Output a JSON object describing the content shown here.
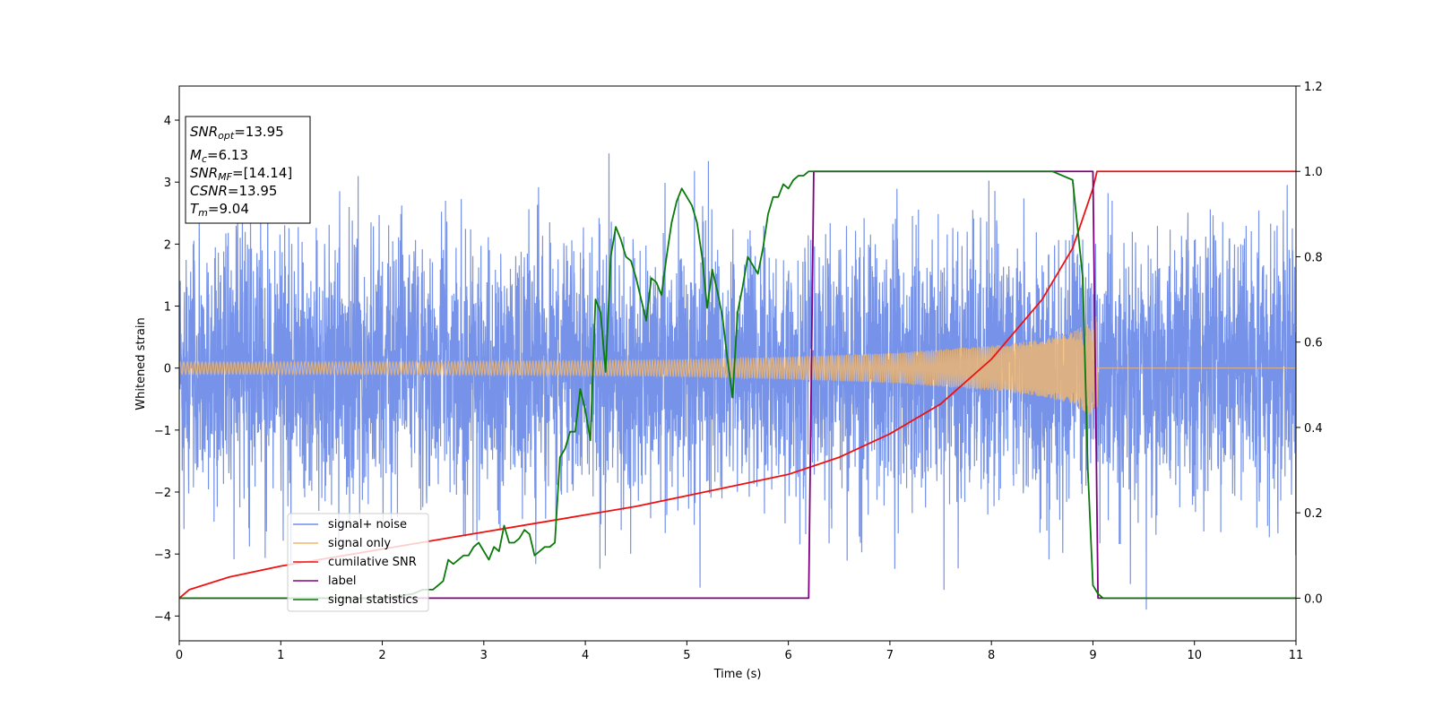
{
  "chart_data": {
    "type": "line",
    "xlabel": "Time (s)",
    "ylabel": "Whitened strain",
    "xlim": [
      0,
      11
    ],
    "ylim": [
      -4.4,
      4.55
    ],
    "y2lim": [
      -0.1,
      1.2
    ],
    "x_ticks": [
      "0",
      "1",
      "2",
      "3",
      "4",
      "5",
      "6",
      "7",
      "8",
      "9",
      "10",
      "11"
    ],
    "y_ticks": [
      "−4",
      "−3",
      "−2",
      "−1",
      "0",
      "1",
      "2",
      "3",
      "4"
    ],
    "y2_ticks": [
      "0.0",
      "0.2",
      "0.4",
      "0.6",
      "0.8",
      "1.0",
      "1.2"
    ],
    "grid": false,
    "legend_position": "lower-left",
    "info_box": {
      "lines": [
        {
          "main": "SNR",
          "sub": "opt",
          "value": "=13.95"
        },
        {
          "main": "M",
          "sub": "c",
          "value": "=6.13"
        },
        {
          "main": "SNR",
          "sub": "MF",
          "value": "=[14.14]"
        },
        {
          "main": "CSNR",
          "sub": "",
          "value": "=13.95"
        },
        {
          "main": "T",
          "sub": "m",
          "value": "=9.04"
        }
      ]
    },
    "series": [
      {
        "name": "signal+ noise",
        "axis": "left",
        "color": "#4169e1",
        "kind": "noise",
        "x_range": [
          0,
          11
        ],
        "noise_sigma": 1.05,
        "peak_max": 4.17,
        "trough_min": -3.9
      },
      {
        "name": "signal only",
        "axis": "left",
        "color": "#f4b86a",
        "kind": "chirp",
        "x_range": [
          0,
          9.04
        ],
        "envelope": {
          "x": [
            0,
            2,
            4,
            5,
            6,
            7,
            8,
            8.5,
            8.8,
            9.0,
            9.04
          ],
          "y": [
            0.1,
            0.1,
            0.12,
            0.14,
            0.18,
            0.24,
            0.36,
            0.46,
            0.58,
            0.78,
            0.85
          ]
        },
        "after_merger": 0
      },
      {
        "name": "cumilative SNR",
        "axis": "right",
        "color": "#ee1111",
        "x": [
          0,
          0.1,
          0.5,
          1,
          1.5,
          2,
          2.5,
          3,
          3.5,
          4,
          4.5,
          5,
          5.5,
          6,
          6.5,
          7,
          7.5,
          8,
          8.5,
          8.8,
          9.0,
          9.04,
          11
        ],
        "y": [
          0.0,
          0.02,
          0.05,
          0.075,
          0.095,
          0.115,
          0.135,
          0.155,
          0.175,
          0.195,
          0.215,
          0.24,
          0.265,
          0.29,
          0.33,
          0.385,
          0.455,
          0.56,
          0.7,
          0.82,
          0.96,
          1.0,
          1.0
        ]
      },
      {
        "name": "label",
        "axis": "right",
        "color": "#800080",
        "x": [
          0,
          6.2,
          6.25,
          9.0,
          9.05,
          11
        ],
        "y": [
          0,
          0,
          1,
          1,
          0,
          0
        ]
      },
      {
        "name": "signal statistics",
        "axis": "right",
        "color": "#0a7a0a",
        "x": [
          0,
          2.0,
          2.3,
          2.4,
          2.5,
          2.6,
          2.65,
          2.7,
          2.75,
          2.8,
          2.85,
          2.9,
          2.95,
          3.0,
          3.05,
          3.1,
          3.15,
          3.2,
          3.25,
          3.3,
          3.35,
          3.4,
          3.45,
          3.5,
          3.55,
          3.6,
          3.65,
          3.7,
          3.75,
          3.8,
          3.85,
          3.9,
          3.95,
          4.0,
          4.05,
          4.1,
          4.15,
          4.2,
          4.25,
          4.3,
          4.35,
          4.4,
          4.45,
          4.5,
          4.55,
          4.6,
          4.65,
          4.7,
          4.75,
          4.8,
          4.85,
          4.9,
          4.95,
          5.0,
          5.05,
          5.1,
          5.15,
          5.2,
          5.25,
          5.3,
          5.35,
          5.4,
          5.45,
          5.5,
          5.55,
          5.6,
          5.65,
          5.7,
          5.75,
          5.8,
          5.85,
          5.9,
          5.95,
          6.0,
          6.05,
          6.1,
          6.15,
          6.2,
          6.25,
          6.3,
          6.35,
          6.4,
          6.45,
          6.5,
          6.55,
          6.6,
          6.7,
          6.8,
          6.9,
          7.0,
          7.2,
          7.4,
          7.6,
          7.8,
          8.0,
          8.2,
          8.4,
          8.6,
          8.8,
          8.9,
          8.95,
          9.0,
          9.05,
          9.1,
          9.2,
          11
        ],
        "y": [
          0.0,
          0.0,
          0.01,
          0.02,
          0.02,
          0.04,
          0.09,
          0.08,
          0.09,
          0.1,
          0.1,
          0.12,
          0.13,
          0.11,
          0.09,
          0.12,
          0.11,
          0.17,
          0.13,
          0.13,
          0.14,
          0.16,
          0.15,
          0.1,
          0.11,
          0.12,
          0.12,
          0.13,
          0.33,
          0.35,
          0.39,
          0.39,
          0.49,
          0.44,
          0.37,
          0.7,
          0.67,
          0.53,
          0.8,
          0.87,
          0.84,
          0.8,
          0.79,
          0.75,
          0.7,
          0.65,
          0.75,
          0.74,
          0.71,
          0.8,
          0.88,
          0.93,
          0.96,
          0.94,
          0.92,
          0.88,
          0.8,
          0.68,
          0.77,
          0.72,
          0.66,
          0.56,
          0.47,
          0.67,
          0.73,
          0.8,
          0.78,
          0.76,
          0.82,
          0.9,
          0.94,
          0.94,
          0.97,
          0.96,
          0.98,
          0.99,
          0.99,
          1.0,
          1.0,
          1.0,
          1.0,
          1.0,
          1.0,
          1.0,
          1.0,
          1.0,
          1.0,
          1.0,
          1.0,
          1.0,
          1.0,
          1.0,
          1.0,
          1.0,
          1.0,
          1.0,
          1.0,
          1.0,
          0.98,
          0.75,
          0.3,
          0.03,
          0.01,
          0.0,
          0.0,
          0.0
        ]
      }
    ]
  }
}
